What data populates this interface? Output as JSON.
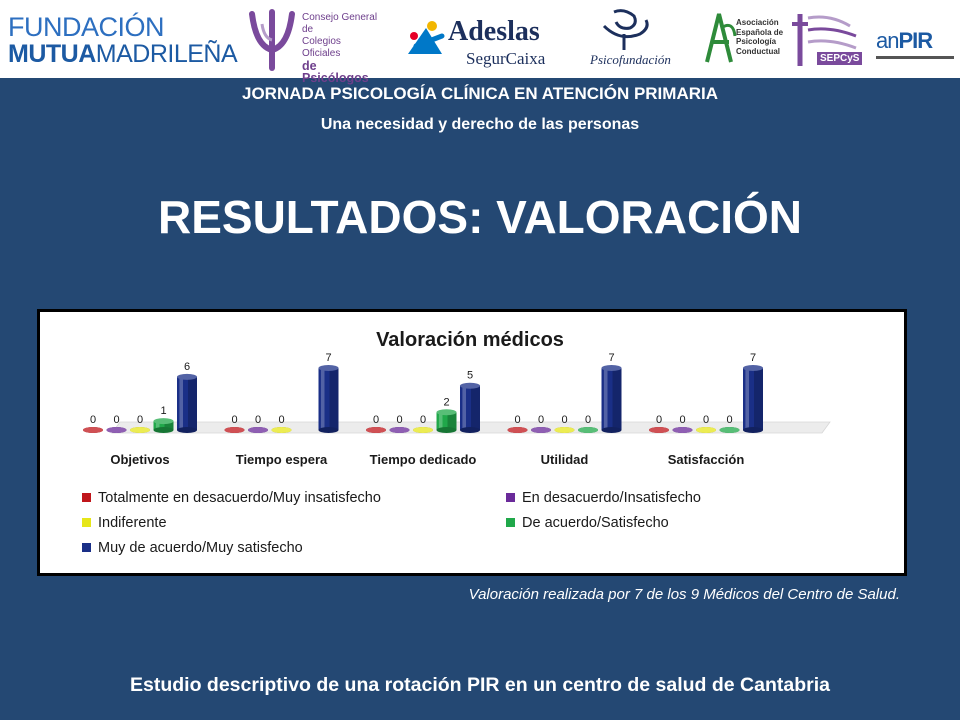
{
  "logos": {
    "fmm_line1": "FUNDACIÓN",
    "fmm_line2_bold": "MUTUA",
    "fmm_line2_rest": "MADRILEÑA",
    "cop": [
      "Consejo General de",
      "Colegios Oficiales",
      "de Psicólogos"
    ],
    "adeslas_name": "Adeslas",
    "adeslas_sub": "SegurCaixa",
    "psicofundacion": "Psicofundación",
    "aepc": [
      "Asociación",
      "Española de",
      "Psicología",
      "Conductual"
    ],
    "sepcys": "SEPCyS",
    "anpir_a": "an",
    "anpir_b": "PIR"
  },
  "header": {
    "title": "JORNADA PSICOLOGÍA CLÍNICA EN ATENCIÓN PRIMARIA",
    "subtitle": "Una necesidad y derecho de las personas"
  },
  "slide_title": "RESULTADOS: VALORACIÓN",
  "chart_note": "Valoración realizada por 7 de los 9 Médicos del Centro de Salud.",
  "footer": "Estudio descriptivo de una rotación PIR en un centro de salud de Cantabria",
  "chart_data": {
    "type": "bar",
    "title": "Valoración  médicos",
    "categories": [
      "Objetivos",
      "Tiempo espera",
      "Tiempo dedicado",
      "Utilidad",
      "Satisfacción"
    ],
    "series": [
      {
        "name": "Totalmente en desacuerdo/Muy  insatisfecho",
        "color": "#c0161b",
        "values": [
          0,
          0,
          0,
          0,
          0
        ],
        "labels": [
          "0",
          "0",
          "0",
          "0",
          "0"
        ]
      },
      {
        "name": "En desacuerdo/Insatisfecho",
        "color": "#6a2a9a",
        "values": [
          0,
          0,
          0,
          0,
          0
        ],
        "labels": [
          "0",
          "0",
          "0",
          "0",
          "0"
        ]
      },
      {
        "name": "Indiferente",
        "color": "#e6e619",
        "values": [
          0,
          0,
          0,
          0,
          0
        ],
        "labels": [
          "0",
          "0",
          "0",
          "0",
          "0"
        ]
      },
      {
        "name": "De acuerdo/Satisfecho",
        "color": "#20a84a",
        "values": [
          1,
          null,
          2,
          0,
          0
        ],
        "labels": [
          "1",
          "",
          "2",
          "0",
          "0"
        ]
      },
      {
        "name": "Muy de acuerdo/Muy satisfecho",
        "color": "#1a2f87",
        "values": [
          6,
          7,
          5,
          7,
          7
        ],
        "labels": [
          "6",
          "7",
          "5",
          "7",
          "7"
        ]
      }
    ],
    "ylim": [
      0,
      7
    ],
    "grid": false,
    "legend_position": "bottom"
  }
}
